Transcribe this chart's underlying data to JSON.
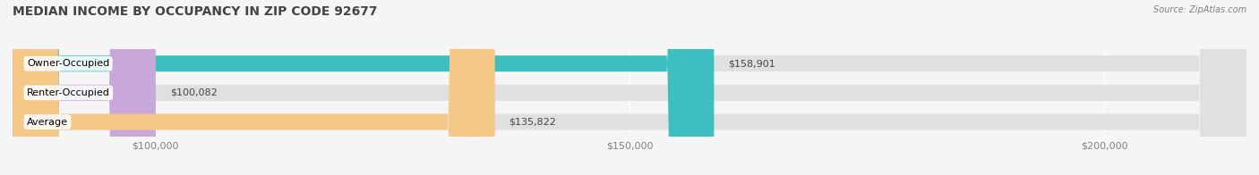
{
  "title": "MEDIAN INCOME BY OCCUPANCY IN ZIP CODE 92677",
  "source": "Source: ZipAtlas.com",
  "categories": [
    "Owner-Occupied",
    "Renter-Occupied",
    "Average"
  ],
  "values": [
    158901,
    100082,
    135822
  ],
  "bar_colors": [
    "#3dbfbf",
    "#c8a8d8",
    "#f5c887"
  ],
  "bar_bg_color": "#e0e0e0",
  "value_labels": [
    "$158,901",
    "$100,082",
    "$135,822"
  ],
  "xlim_min": 85000,
  "xlim_max": 215000,
  "xtick_values": [
    100000,
    150000,
    200000
  ],
  "xtick_labels": [
    "$100,000",
    "$150,000",
    "$200,000"
  ],
  "title_fontsize": 10,
  "label_fontsize": 8,
  "tick_fontsize": 8,
  "source_fontsize": 7,
  "background_color": "#f5f5f5",
  "bar_height": 0.55
}
